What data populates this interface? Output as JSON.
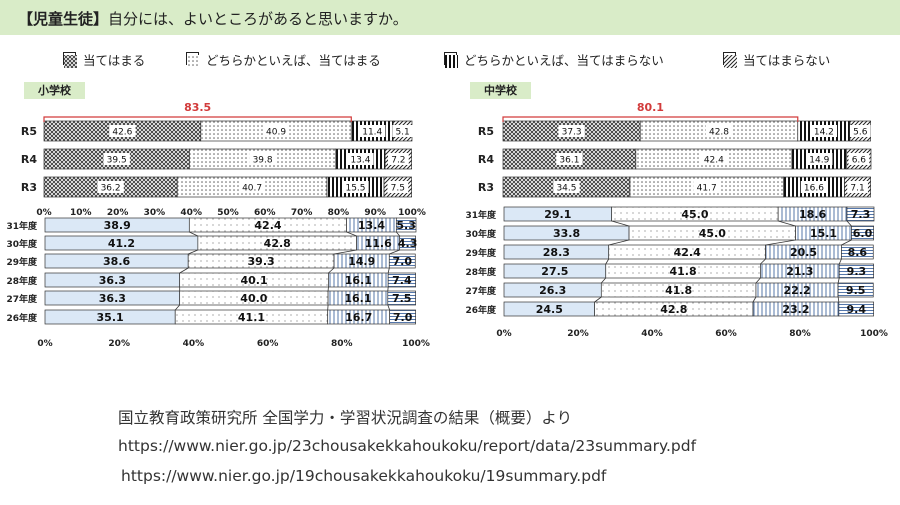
{
  "header": {
    "tag": "【児童生徒】",
    "question": "自分には、よいところがあると思いますか。"
  },
  "legend": {
    "items": [
      {
        "label": "当てはまる",
        "pattern": "cross"
      },
      {
        "label": "どちらかといえば、当てはまる",
        "pattern": "dot"
      },
      {
        "label": "どちらかといえば、当てはまらない",
        "pattern": "vbar"
      },
      {
        "label": "当てはまらない",
        "pattern": "diag"
      }
    ]
  },
  "schools": [
    {
      "name": "小学校"
    },
    {
      "name": "中学校"
    }
  ],
  "chart_data": [
    {
      "type": "bar",
      "orientation": "horizontal",
      "stacked": true,
      "panel": "小学校",
      "segment": "R",
      "categories": [
        "R5",
        "R4",
        "R3"
      ],
      "series": [
        {
          "name": "当てはまる",
          "values": [
            42.6,
            39.5,
            36.2
          ]
        },
        {
          "name": "どちらかといえば、当てはまる",
          "values": [
            40.9,
            39.8,
            40.7
          ]
        },
        {
          "name": "どちらかといえば、当てはまらない",
          "values": [
            11.4,
            13.4,
            15.5
          ]
        },
        {
          "name": "当てはまらない",
          "values": [
            5.1,
            7.2,
            7.5
          ]
        }
      ],
      "annotation": "83.5",
      "xlim": [
        0,
        100
      ],
      "x_ticks": [
        "0%",
        "10%",
        "20%",
        "30%",
        "40%",
        "50%",
        "60%",
        "70%",
        "80%",
        "90%",
        "100%"
      ]
    },
    {
      "type": "bar",
      "orientation": "horizontal",
      "stacked": true,
      "panel": "小学校",
      "segment": "H",
      "categories": [
        "31年度",
        "30年度",
        "29年度",
        "28年度",
        "27年度",
        "26年度"
      ],
      "series": [
        {
          "name": "当てはまる",
          "values": [
            38.9,
            41.2,
            38.6,
            36.3,
            36.3,
            35.1
          ]
        },
        {
          "name": "どちらかといえば、当てはまる",
          "values": [
            42.4,
            42.8,
            39.3,
            40.1,
            40.0,
            41.1
          ]
        },
        {
          "name": "どちらかといえば、当てはまらない",
          "values": [
            13.4,
            11.6,
            14.9,
            16.1,
            16.1,
            16.7
          ]
        },
        {
          "name": "当てはまらない",
          "values": [
            5.3,
            4.3,
            7.0,
            7.4,
            7.5,
            7.0
          ]
        }
      ],
      "xlim": [
        0,
        100
      ],
      "x_ticks": [
        "0%",
        "20%",
        "40%",
        "60%",
        "80%",
        "100%"
      ]
    },
    {
      "type": "bar",
      "orientation": "horizontal",
      "stacked": true,
      "panel": "中学校",
      "segment": "R",
      "categories": [
        "R5",
        "R4",
        "R3"
      ],
      "series": [
        {
          "name": "当てはまる",
          "values": [
            37.3,
            36.1,
            34.5
          ]
        },
        {
          "name": "どちらかといえば、当てはまる",
          "values": [
            42.8,
            42.4,
            41.7
          ]
        },
        {
          "name": "どちらかといえば、当てはまらない",
          "values": [
            14.2,
            14.9,
            16.6
          ]
        },
        {
          "name": "当てはまらない",
          "values": [
            5.6,
            6.6,
            7.1
          ]
        }
      ],
      "annotation": "80.1",
      "xlim": [
        0,
        100
      ],
      "x_ticks": []
    },
    {
      "type": "bar",
      "orientation": "horizontal",
      "stacked": true,
      "panel": "中学校",
      "segment": "H",
      "categories": [
        "31年度",
        "30年度",
        "29年度",
        "28年度",
        "27年度",
        "26年度"
      ],
      "series": [
        {
          "name": "当てはまる",
          "values": [
            29.1,
            33.8,
            28.3,
            27.5,
            26.3,
            24.5
          ]
        },
        {
          "name": "どちらかといえば、当てはまる",
          "values": [
            45.0,
            45.0,
            42.4,
            41.8,
            41.8,
            42.8
          ]
        },
        {
          "name": "どちらかといえば、当てはまらない",
          "values": [
            18.6,
            15.1,
            20.5,
            21.3,
            22.2,
            23.2
          ]
        },
        {
          "name": "当てはまらない",
          "values": [
            7.3,
            6.0,
            8.6,
            9.3,
            9.5,
            9.4
          ]
        }
      ],
      "xlim": [
        0,
        100
      ],
      "x_ticks": [
        "0%",
        "20%",
        "40%",
        "60%",
        "80%",
        "100%"
      ]
    }
  ],
  "sources": [
    "国立教育政策研究所 全国学力・学習状況調査の結果（概要）より",
    "https://www.nier.go.jp/23chousakekkahoukoku/report/data/23summary.pdf",
    "https://www.nier.go.jp/19chousakekkahoukoku/19summary.pdf"
  ]
}
